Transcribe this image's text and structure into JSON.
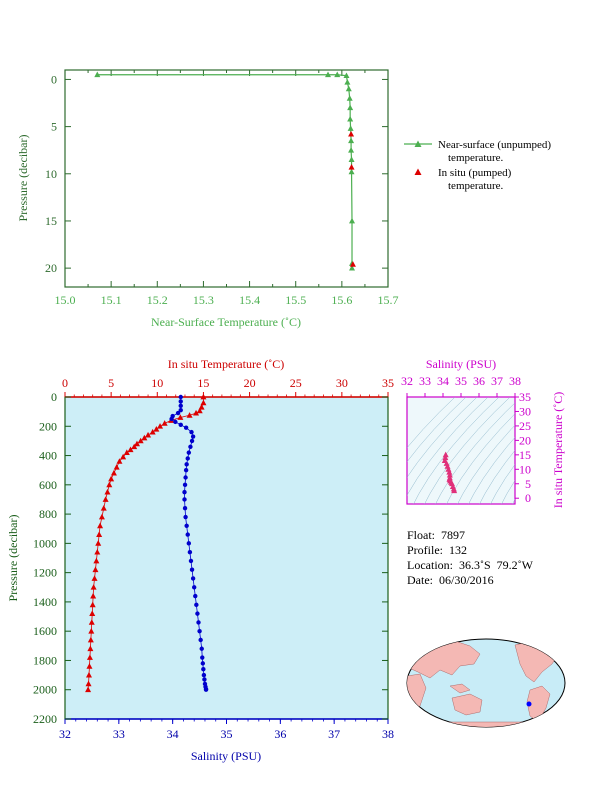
{
  "top_chart": {
    "xlabel": "Near-Surface Temperature (˚C)",
    "ylabel": "Pressure (decibar)",
    "xticks": [
      "15.0",
      "15.1",
      "15.2",
      "15.3",
      "15.4",
      "15.5",
      "15.6",
      "15.7"
    ],
    "yticks": [
      "0",
      "5",
      "10",
      "15",
      "20"
    ],
    "legend": [
      {
        "line1": "Near-surface (unpumped)",
        "line2": "temperature.",
        "color": "#4caf50"
      },
      {
        "line1": "In situ (pumped)",
        "line2": "temperature.",
        "color": "#dd0000"
      }
    ]
  },
  "bottom_chart": {
    "top_label": "In situ Temperature (˚C)",
    "bottom_label": "Salinity (PSU)",
    "ylabel": "Pressure (decibar)",
    "temp_ticks": [
      "0",
      "5",
      "10",
      "15",
      "20",
      "25",
      "30",
      "35"
    ],
    "sal_ticks": [
      "32",
      "33",
      "34",
      "35",
      "36",
      "37",
      "38"
    ],
    "yticks": [
      "0",
      "200",
      "400",
      "600",
      "800",
      "1000",
      "1200",
      "1400",
      "1600",
      "1800",
      "2000",
      "2200"
    ]
  },
  "ts_chart": {
    "top_label": "Salinity (PSU)",
    "right_label": "In situ Temperature (˚C)",
    "sal_ticks": [
      "32",
      "33",
      "34",
      "35",
      "36",
      "37",
      "38"
    ],
    "temp_ticks": [
      "0",
      "5",
      "10",
      "15",
      "20",
      "25",
      "30",
      "35"
    ]
  },
  "float_info": {
    "float": "Float:  7897",
    "profile": "Profile:  132",
    "location": "Location:  36.3˚S  79.2˚W",
    "date": "Date:  06/30/2016"
  },
  "chart_data": [
    {
      "type": "line",
      "title": "",
      "xlabel": "Near-Surface Temperature (˚C)",
      "ylabel": "Pressure (decibar)",
      "xlim": [
        15.0,
        15.7
      ],
      "ylim": [
        22,
        -1
      ],
      "series": [
        {
          "name": "Near-surface (unpumped) temperature.",
          "color": "#4caf50",
          "x": [
            15.07,
            15.57,
            15.59,
            15.61,
            15.612,
            15.615,
            15.617,
            15.618,
            15.618,
            15.619,
            15.62,
            15.62,
            15.621,
            15.621,
            15.622,
            15.622,
            15.622
          ],
          "y": [
            -0.5,
            -0.5,
            -0.5,
            -0.4,
            0.3,
            1.0,
            2.0,
            3.0,
            4.2,
            5.2,
            6.5,
            7.5,
            8.5,
            9.8,
            15.0,
            19.5,
            20.0
          ]
        },
        {
          "name": "In situ (pumped) temperature.",
          "color": "#dd0000",
          "x": [
            15.62,
            15.621,
            15.624
          ],
          "y": [
            5.8,
            9.3,
            19.6
          ]
        }
      ]
    },
    {
      "type": "line",
      "title": "",
      "ylabel": "Pressure (decibar)",
      "ylim": [
        2200,
        0
      ],
      "series": [
        {
          "name": "In situ Temperature (˚C)",
          "color": "#dd0000",
          "xlim": [
            0,
            35
          ],
          "x": [
            15.0,
            15.0,
            14.8,
            14.6,
            14.2,
            13.5,
            12.5,
            11.5,
            10.8,
            10.3,
            9.9,
            9.5,
            9.0,
            8.6,
            8.2,
            7.8,
            7.5,
            7.1,
            6.7,
            6.3,
            5.9,
            5.6,
            5.3,
            5.0,
            4.8,
            4.6,
            4.4,
            4.2,
            4.0,
            3.8,
            3.7,
            3.6,
            3.5,
            3.4,
            3.3,
            3.2,
            3.1,
            3.05,
            3.0,
            2.95,
            2.9,
            2.85,
            2.8,
            2.75,
            2.7,
            2.65,
            2.6,
            2.55,
            2.5
          ],
          "y": [
            0,
            40,
            70,
            95,
            110,
            125,
            140,
            160,
            180,
            200,
            220,
            240,
            260,
            280,
            300,
            320,
            340,
            360,
            380,
            410,
            440,
            480,
            520,
            560,
            600,
            650,
            700,
            760,
            820,
            880,
            940,
            1000,
            1060,
            1120,
            1180,
            1240,
            1300,
            1360,
            1420,
            1480,
            1540,
            1600,
            1660,
            1720,
            1780,
            1840,
            1900,
            1960,
            2000
          ]
        },
        {
          "name": "Salinity (PSU)",
          "color": "#0000cc",
          "xlim": [
            32,
            38
          ],
          "x": [
            34.15,
            34.15,
            34.15,
            34.15,
            34.1,
            34.0,
            33.98,
            34.05,
            34.15,
            34.25,
            34.35,
            34.38,
            34.36,
            34.33,
            34.3,
            34.28,
            34.26,
            34.25,
            34.24,
            34.23,
            34.22,
            34.22,
            34.23,
            34.24,
            34.26,
            34.28,
            34.3,
            34.32,
            34.34,
            34.36,
            34.38,
            34.4,
            34.42,
            34.44,
            34.46,
            34.48,
            34.5,
            34.52,
            34.54,
            34.55,
            34.56,
            34.57,
            34.58,
            34.59,
            34.6,
            34.61,
            34.62,
            34.62
          ],
          "y": [
            0,
            30,
            60,
            90,
            110,
            130,
            150,
            170,
            190,
            210,
            240,
            270,
            300,
            340,
            380,
            420,
            460,
            500,
            550,
            600,
            650,
            700,
            760,
            820,
            880,
            940,
            1000,
            1060,
            1120,
            1180,
            1240,
            1300,
            1360,
            1420,
            1480,
            1540,
            1600,
            1660,
            1720,
            1780,
            1820,
            1860,
            1900,
            1930,
            1960,
            1980,
            1995,
            2000
          ]
        }
      ]
    },
    {
      "type": "scatter",
      "title": "",
      "xlabel": "Salinity (PSU)",
      "ylabel": "In situ Temperature (˚C)",
      "xlim": [
        32,
        38
      ],
      "ylim": [
        -2,
        35
      ],
      "series": [
        {
          "name": "T-S",
          "color": "#e0307a",
          "x": [
            34.15,
            34.13,
            34.1,
            34.2,
            34.25,
            34.3,
            34.35,
            34.38,
            34.38,
            34.36,
            34.4,
            34.45,
            34.5,
            34.55,
            34.6,
            34.62
          ],
          "y": [
            15.0,
            14.0,
            13.0,
            12.0,
            11.0,
            10.0,
            9.0,
            8.0,
            7.0,
            6.5,
            6.0,
            5.5,
            5.0,
            4.0,
            3.2,
            2.6
          ]
        }
      ]
    }
  ]
}
